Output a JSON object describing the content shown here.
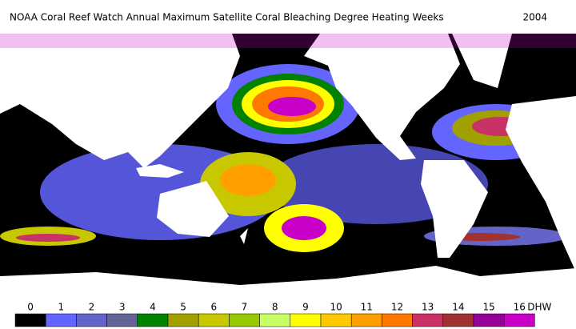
{
  "header": {
    "title": "NOAA Coral Reef Watch Annual Maximum Satellite Coral Bleaching Degree Heating Weeks",
    "year": "2004"
  },
  "legend": {
    "unit": "DHW",
    "steps": [
      {
        "label": "0",
        "color": "#000000"
      },
      {
        "label": "1",
        "color": "#6464ff"
      },
      {
        "label": "2",
        "color": "#6464c8"
      },
      {
        "label": "3",
        "color": "#646496"
      },
      {
        "label": "4",
        "color": "#008200"
      },
      {
        "label": "5",
        "color": "#a0a000"
      },
      {
        "label": "6",
        "color": "#c8c800"
      },
      {
        "label": "7",
        "color": "#96c800"
      },
      {
        "label": "8",
        "color": "#c8ff64"
      },
      {
        "label": "9",
        "color": "#ffff00"
      },
      {
        "label": "10",
        "color": "#ffc800"
      },
      {
        "label": "11",
        "color": "#ffa000"
      },
      {
        "label": "12",
        "color": "#ff7800"
      },
      {
        "label": "13",
        "color": "#c83264"
      },
      {
        "label": "14",
        "color": "#a03232"
      },
      {
        "label": "15",
        "color": "#96009b"
      },
      {
        "label": "16",
        "color": "#c800c8"
      }
    ]
  }
}
